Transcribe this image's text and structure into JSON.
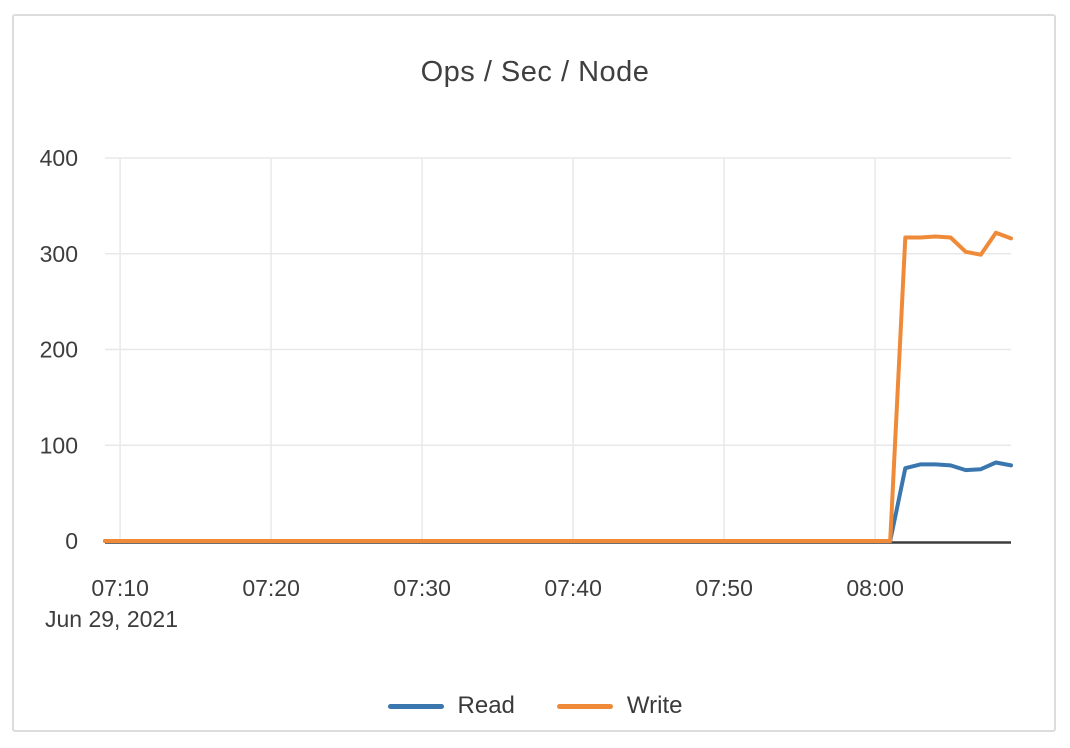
{
  "chart_data": {
    "type": "line",
    "title": "Ops / Sec / Node",
    "x_axis_date_label": "Jun 29, 2021",
    "xlabel": "",
    "ylabel": "",
    "ylim": [
      0,
      400
    ],
    "y_ticks": [
      0,
      100,
      200,
      300,
      400
    ],
    "x_ticks": [
      "07:10",
      "07:20",
      "07:30",
      "07:40",
      "07:50",
      "08:00"
    ],
    "grid": true,
    "legend_position": "bottom",
    "colors": {
      "grid": "#e8e8e8",
      "axis": "#3d3d3d",
      "text": "#3d3d3d",
      "card_border": "#dcdcdc"
    },
    "x": [
      "07:09",
      "07:10",
      "07:11",
      "07:12",
      "07:13",
      "07:14",
      "07:15",
      "07:16",
      "07:17",
      "07:18",
      "07:19",
      "07:20",
      "07:21",
      "07:22",
      "07:23",
      "07:24",
      "07:25",
      "07:26",
      "07:27",
      "07:28",
      "07:29",
      "07:30",
      "07:31",
      "07:32",
      "07:33",
      "07:34",
      "07:35",
      "07:36",
      "07:37",
      "07:38",
      "07:39",
      "07:40",
      "07:41",
      "07:42",
      "07:43",
      "07:44",
      "07:45",
      "07:46",
      "07:47",
      "07:48",
      "07:49",
      "07:50",
      "07:51",
      "07:52",
      "07:53",
      "07:54",
      "07:55",
      "07:56",
      "07:57",
      "07:58",
      "07:59",
      "08:00",
      "08:01",
      "08:02",
      "08:03",
      "08:04",
      "08:05",
      "08:06",
      "08:07",
      "08:08",
      "08:09"
    ],
    "series": [
      {
        "name": "Read",
        "color": "#3b77af",
        "values": [
          0,
          0,
          0,
          0,
          0,
          0,
          0,
          0,
          0,
          0,
          0,
          0,
          0,
          0,
          0,
          0,
          0,
          0,
          0,
          0,
          0,
          0,
          0,
          0,
          0,
          0,
          0,
          0,
          0,
          0,
          0,
          0,
          0,
          0,
          0,
          0,
          0,
          0,
          0,
          0,
          0,
          0,
          0,
          0,
          0,
          0,
          0,
          0,
          0,
          0,
          0,
          0,
          0,
          76,
          80,
          80,
          79,
          74,
          75,
          82,
          79
        ]
      },
      {
        "name": "Write",
        "color": "#ee8a38",
        "values": [
          0,
          0,
          0,
          0,
          0,
          0,
          0,
          0,
          0,
          0,
          0,
          0,
          0,
          0,
          0,
          0,
          0,
          0,
          0,
          0,
          0,
          0,
          0,
          0,
          0,
          0,
          0,
          0,
          0,
          0,
          0,
          0,
          0,
          0,
          0,
          0,
          0,
          0,
          0,
          0,
          0,
          0,
          0,
          0,
          0,
          0,
          0,
          0,
          0,
          0,
          0,
          0,
          0,
          317,
          317,
          318,
          317,
          302,
          299,
          322,
          316
        ]
      }
    ]
  }
}
